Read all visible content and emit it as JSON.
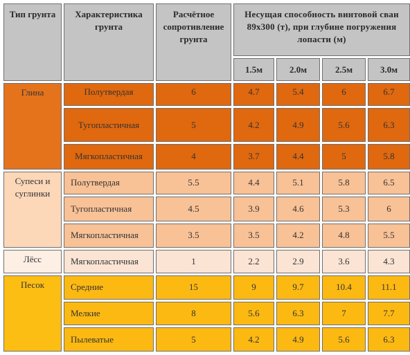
{
  "header": {
    "col_type": "Тип грунта",
    "col_char": "Характеристика грунта",
    "col_resist": "Расчётное сопротивление грунта",
    "col_capacity": "Несущая способность винтовой сваи 89х300 (т), при глубине погружения лопасти (м)",
    "depths": [
      "1.5м",
      "2.0м",
      "2.5м",
      "3.0м"
    ]
  },
  "groups": [
    {
      "type": "Глина",
      "rows": [
        {
          "char": "Полутвердая",
          "resist": "6",
          "caps": [
            "4.7",
            "5.4",
            "6",
            "6.7"
          ]
        },
        {
          "char": "Тугопластичная",
          "resist": "5",
          "caps": [
            "4.2",
            "4.9",
            "5.6",
            "6.3"
          ]
        },
        {
          "char": "Мягкопластичная",
          "resist": "4",
          "caps": [
            "3.7",
            "4.4",
            "5",
            "5.8"
          ]
        }
      ]
    },
    {
      "type": "Супеси и суглинки",
      "rows": [
        {
          "char": "Полутвердая",
          "resist": "5.5",
          "caps": [
            "4.4",
            "5.1",
            "5.8",
            "6.5"
          ]
        },
        {
          "char": "Тугопластичная",
          "resist": "4.5",
          "caps": [
            "3.9",
            "4.6",
            "5.3",
            "6"
          ]
        },
        {
          "char": "Мягкопластичная",
          "resist": "3.5",
          "caps": [
            "3.5",
            "4.2",
            "4.8",
            "5.5"
          ]
        }
      ]
    },
    {
      "type": "Лёсс",
      "rows": [
        {
          "char": "Мягкопластичная",
          "resist": "1",
          "caps": [
            "2.2",
            "2.9",
            "3.6",
            "4.3"
          ]
        }
      ]
    },
    {
      "type": "Песок",
      "rows": [
        {
          "char": "Средние",
          "resist": "15",
          "caps": [
            "9",
            "9.7",
            "10.4",
            "11.1"
          ]
        },
        {
          "char": "Мелкие",
          "resist": "8",
          "caps": [
            "5.6",
            "6.3",
            "7",
            "7.7"
          ]
        },
        {
          "char": "Пылеватые",
          "resist": "5",
          "caps": [
            "4.2",
            "4.9",
            "5.6",
            "6.3"
          ]
        }
      ]
    }
  ],
  "colors": {
    "glina_type": "#e5731c",
    "glina_cell": "#e0680f",
    "supes_type": "#fcd7b8",
    "supes_cell": "#f8c196",
    "less_type": "#fdefe4",
    "less_cell": "#fbe4d4",
    "pesok_type": "#fdbe13",
    "pesok_cell": "#fcb912",
    "header": "#c4c4c4"
  }
}
